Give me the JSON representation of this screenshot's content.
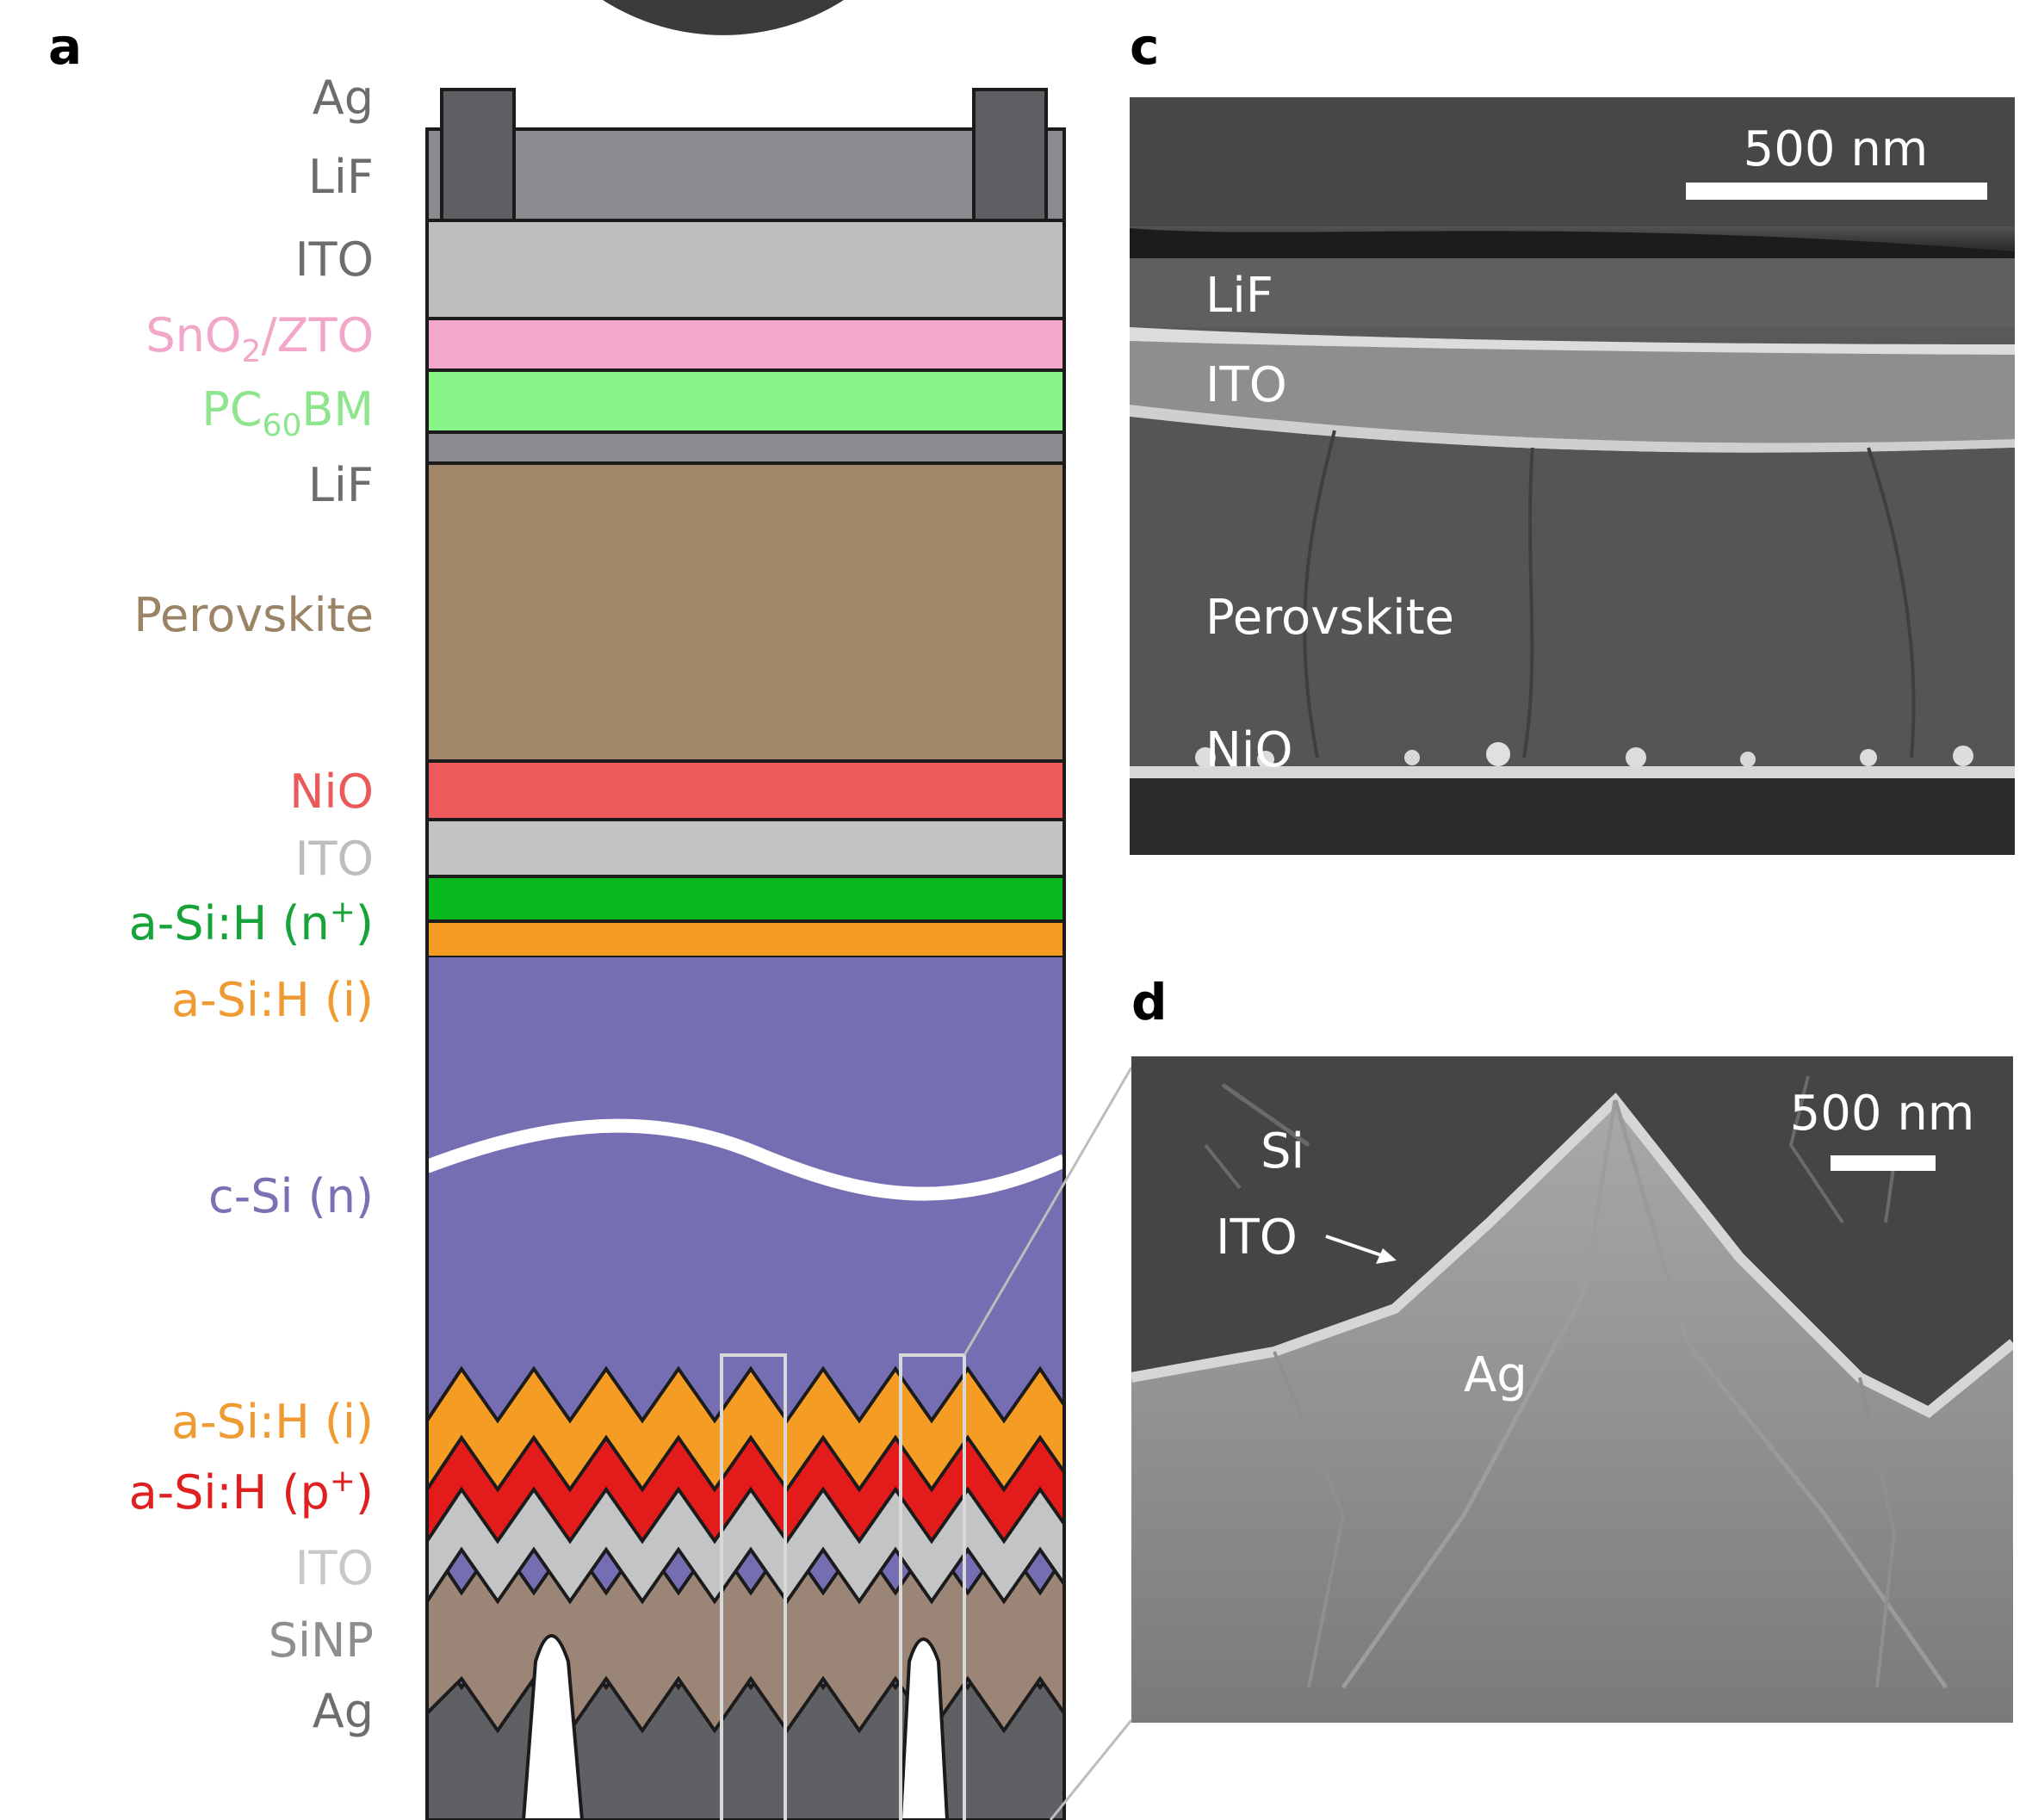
{
  "figure": {
    "panels": {
      "a": "a",
      "c": "c",
      "d": "d"
    },
    "stack_labels": [
      {
        "text": "Ag",
        "color": "#6d6d6d"
      },
      {
        "text": "LiF",
        "color": "#6d6d6d"
      },
      {
        "text": "ITO",
        "color": "#6d6d6d"
      },
      {
        "text": "SnO",
        "sub": "2",
        "tail": "/ZTO",
        "color": "#f2a6c8"
      },
      {
        "text": "PC",
        "sub": "60",
        "tail": "BM",
        "color": "#8ee58e"
      },
      {
        "text": "LiF",
        "color": "#6d6d6d"
      },
      {
        "text": "Perovskite",
        "color": "#9b8466"
      },
      {
        "text": "NiO",
        "color": "#ea5a5a"
      },
      {
        "text": "ITO",
        "color": "#bdbdbd"
      },
      {
        "text": "a-Si:H (n",
        "sup": "+",
        "tail": ")",
        "color": "#17a33a"
      },
      {
        "text": "a-Si:H (i)",
        "color": "#f09a32"
      },
      {
        "text": "c-Si (n)",
        "color": "#7a70b4"
      },
      {
        "text": "a-Si:H (i)",
        "color": "#f09a32"
      },
      {
        "text": "a-Si:H (p",
        "sup": "+",
        "tail": ")",
        "color": "#e02020"
      },
      {
        "text": "ITO",
        "color": "#c8c8c8"
      },
      {
        "text": "SiNP",
        "color": "#8e8e8e"
      },
      {
        "text": "Ag",
        "color": "#6d6d6d"
      }
    ],
    "layer_colors": {
      "ag": "#5e5f63",
      "lif": "#8a8b8f",
      "ito": "#bcbdbf",
      "sno2_zto": "#f2a8cc",
      "pcbm": "#88f588",
      "perovskite": "#a3876a",
      "nio": "#ec5a5c",
      "ito2": "#c2c3c5",
      "asi_n": "#07b81c",
      "asi_i": "#f59c24",
      "csi": "#766eb2",
      "asi_p": "#e41b1b",
      "sinp": "#9b8576"
    },
    "sem_c": {
      "scale": "500 nm",
      "labels": [
        "LiF",
        "ITO",
        "Perovskite",
        "NiO"
      ]
    },
    "sem_d": {
      "scale": "500 nm",
      "labels": [
        "Si",
        "ITO",
        "Ag"
      ]
    }
  }
}
